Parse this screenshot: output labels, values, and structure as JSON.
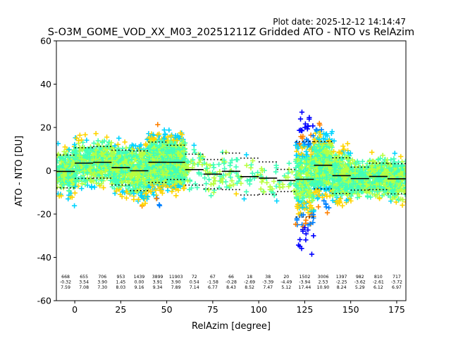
{
  "header": {
    "plot_date": "Plot date: 2025-12-12 14:14:47",
    "title": "S-O3M_GOME_VOD_XX_M03_20251211Z Gridded ATO - NTO vs RelAzim"
  },
  "chart_data": {
    "type": "scatter",
    "title": "S-O3M_GOME_VOD_XX_M03_20251211Z Gridded ATO - NTO vs RelAzim",
    "xlabel": "RelAzim [degree]",
    "ylabel": "ATO - NTO [DU]",
    "xlim": [
      -10,
      180
    ],
    "ylim": [
      -60,
      60
    ],
    "xticks": [
      0,
      25,
      50,
      75,
      100,
      125,
      150,
      175
    ],
    "yticks": [
      -60,
      -40,
      -20,
      0,
      20,
      40,
      60
    ],
    "grid": false,
    "marker": "+",
    "point_colors": [
      "#0000ff",
      "#0080ff",
      "#00d4ff",
      "#40ffb8",
      "#b8ff40",
      "#ffd400",
      "#ff8000"
    ],
    "bins": [
      {
        "center": -5,
        "count": "668",
        "mean": "-0.32",
        "std": "7.59"
      },
      {
        "center": 5,
        "count": "655",
        "mean": "3.54",
        "std": "7.08"
      },
      {
        "center": 15,
        "count": "706",
        "mean": "3.90",
        "std": "7.30"
      },
      {
        "center": 25,
        "count": "953",
        "mean": "1.45",
        "std": "8.03"
      },
      {
        "center": 35,
        "count": "1439",
        "mean": "0.00",
        "std": "9.16"
      },
      {
        "center": 45,
        "count": "3899",
        "mean": "3.91",
        "std": "9.34"
      },
      {
        "center": 55,
        "count": "11903",
        "mean": "3.90",
        "std": "7.89"
      },
      {
        "center": 65,
        "count": "72",
        "mean": "0.54",
        "std": "7.14"
      },
      {
        "center": 75,
        "count": "67",
        "mean": "-1.58",
        "std": "6.77"
      },
      {
        "center": 85,
        "count": "66",
        "mean": "-0.28",
        "std": "8.43"
      },
      {
        "center": 95,
        "count": "18",
        "mean": "-2.69",
        "std": "8.52"
      },
      {
        "center": 105,
        "count": "38",
        "mean": "-3.39",
        "std": "7.47"
      },
      {
        "center": 115,
        "count": "20",
        "mean": "-4.49",
        "std": "5.12"
      },
      {
        "center": 125,
        "count": "1502",
        "mean": "-3.94",
        "std": "17.44"
      },
      {
        "center": 135,
        "count": "3006",
        "mean": "2.53",
        "std": "10.90"
      },
      {
        "center": 145,
        "count": "1397",
        "mean": "-2.25",
        "std": "8.24"
      },
      {
        "center": 155,
        "count": "982",
        "mean": "-3.62",
        "std": "5.29"
      },
      {
        "center": 165,
        "count": "810",
        "mean": "-2.61",
        "std": "6.12"
      },
      {
        "center": 175,
        "count": "717",
        "mean": "-3.72",
        "std": "6.97"
      }
    ]
  }
}
